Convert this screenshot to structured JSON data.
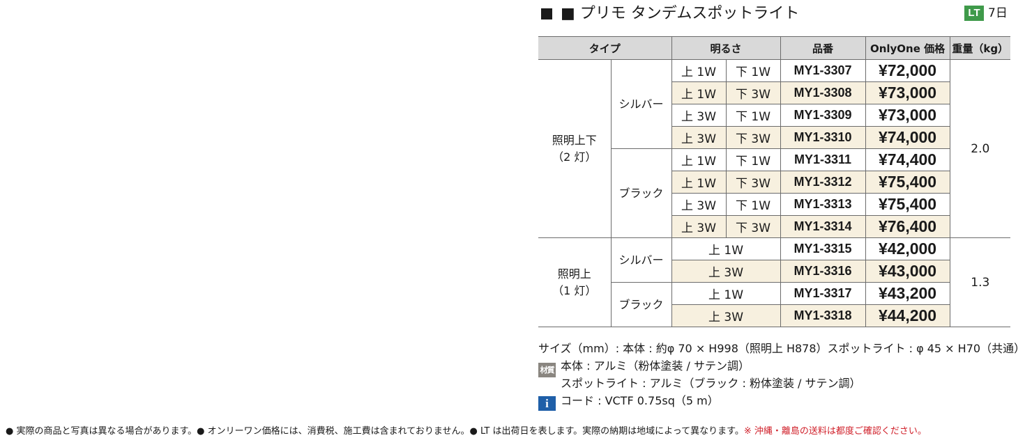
{
  "header": {
    "title": "■ プリモ タンデムスポットライト",
    "lt_badge": "LT",
    "lt_days": "7日"
  },
  "table": {
    "columns": {
      "type": "タイプ",
      "brightness": "明るさ",
      "model": "品番",
      "price": "OnlyOne 価格",
      "weight": "重量（kg）"
    },
    "groups": [
      {
        "type_line1": "照明上下",
        "type_line2": "（2 灯）",
        "weight": "2.0",
        "finishes": [
          {
            "finish": "シルバー",
            "rows": [
              {
                "up": "上 1W",
                "down": "下 1W",
                "model": "MY1-3307",
                "price": "¥72,000"
              },
              {
                "up": "上 1W",
                "down": "下 3W",
                "model": "MY1-3308",
                "price": "¥73,000"
              },
              {
                "up": "上 3W",
                "down": "下 1W",
                "model": "MY1-3309",
                "price": "¥73,000"
              },
              {
                "up": "上 3W",
                "down": "下 3W",
                "model": "MY1-3310",
                "price": "¥74,000"
              }
            ]
          },
          {
            "finish": "ブラック",
            "rows": [
              {
                "up": "上 1W",
                "down": "下 1W",
                "model": "MY1-3311",
                "price": "¥74,400"
              },
              {
                "up": "上 1W",
                "down": "下 3W",
                "model": "MY1-3312",
                "price": "¥75,400"
              },
              {
                "up": "上 3W",
                "down": "下 1W",
                "model": "MY1-3313",
                "price": "¥75,400"
              },
              {
                "up": "上 3W",
                "down": "下 3W",
                "model": "MY1-3314",
                "price": "¥76,400"
              }
            ]
          }
        ]
      },
      {
        "type_line1": "照明上",
        "type_line2": "（1 灯）",
        "weight": "1.3",
        "finishes": [
          {
            "finish": "シルバー",
            "rows": [
              {
                "up": "上 1W",
                "model": "MY1-3315",
                "price": "¥42,000"
              },
              {
                "up": "上 3W",
                "model": "MY1-3316",
                "price": "¥43,000"
              }
            ]
          },
          {
            "finish": "ブラック",
            "rows": [
              {
                "up": "上 1W",
                "model": "MY1-3317",
                "price": "¥43,200"
              },
              {
                "up": "上 3W",
                "model": "MY1-3318",
                "price": "¥44,200"
              }
            ]
          }
        ]
      }
    ]
  },
  "specs": {
    "size": "サイズ（mm）: 本体 : 約φ 70 × H998（照明上 H878）スポットライト : φ 45 × H70（共通）",
    "material_icon": "材質",
    "material_body": "本体 : アルミ（粉体塗装 / サテン調）",
    "material_spot": "スポットライト : アルミ（ブラック : 粉体塗装 / サテン調）",
    "info_icon": "i",
    "cord": "コード : VCTF 0.75sq（5 m）"
  },
  "footer": {
    "note": "● 実際の商品と写真は異なる場合があります。● オンリーワン価格には、消費税、施工費は含まれておりません。● LT は出荷日を表します。実際の納期は地域によって異なります。",
    "warning": "※ 沖縄・離島の送料は都度ご確認ください。"
  },
  "colors": {
    "badge_green": "#3f9a4a",
    "header_gray": "#d9d9d9",
    "alt_row": "#f7f0df",
    "info_blue": "#1f5fa8",
    "warning_red": "#d0202a"
  }
}
